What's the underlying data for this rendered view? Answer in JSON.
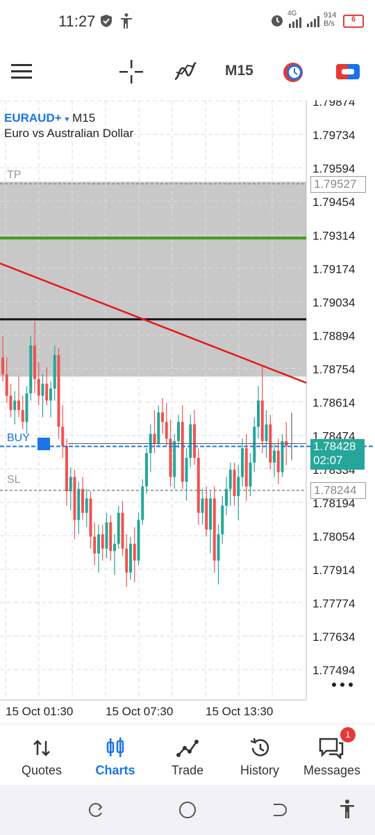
{
  "status_bar": {
    "time": "11:27",
    "network_speed_value": "914",
    "network_speed_unit": "B/s",
    "network_type": "4G",
    "battery_level": "6",
    "icons": [
      "shield-icon",
      "accessibility-icon",
      "alarm-icon",
      "signal-icon",
      "battery-icon"
    ]
  },
  "toolbar": {
    "menu_icon": "hamburger-menu-icon",
    "crosshair_icon": "crosshair-icon",
    "indicators_icon": "indicators-icon",
    "timeframe": "M15",
    "clock_icon": "clock-icon",
    "trade_icon": "trade-toggle-icon"
  },
  "chart": {
    "symbol": "EURAUD+",
    "dropdown_arrow": "▾",
    "timeframe": "M15",
    "description": "Euro vs Australian Dollar",
    "tp_label": "TP",
    "sl_label": "SL",
    "buy_label": "BUY",
    "current_price": "1.78428",
    "countdown": "02:07",
    "tp_price": "1.79527",
    "sl_price": "1.78244",
    "more_icon": "more-dots-icon",
    "colors": {
      "bull": "#26a69a",
      "bear": "#ef5350",
      "tp_zone": "#c8c8c8",
      "green_line": "#3f9d1f",
      "red_trendline": "#e21a1a",
      "buy_line": "#1a73e8"
    }
  },
  "chart_data": {
    "type": "candlestick",
    "symbol": "EURAUD+",
    "timeframe": "M15",
    "y_ticks": [
      "1.79874",
      "1.79734",
      "1.79594",
      "1.79454",
      "1.79314",
      "1.79174",
      "1.79034",
      "1.78894",
      "1.78754",
      "1.78614",
      "1.78474",
      "1.78334",
      "1.78194",
      "1.78054",
      "1.77914",
      "1.77774",
      "1.77634",
      "1.77494"
    ],
    "x_ticks": [
      "15 Oct 01:30",
      "15 Oct 07:30",
      "15 Oct 13:30"
    ],
    "ylim": [
      1.7742,
      1.799
    ],
    "levels": {
      "take_profit": 1.79527,
      "stop_loss": 1.78244,
      "bid": 1.78428,
      "green_line": 1.793,
      "black_line": 1.7896,
      "trendline": [
        [
          1.79194,
          1.78694
        ]
      ]
    },
    "candles": [
      [
        1.788,
        1.7889,
        1.787,
        1.7873
      ],
      [
        1.7873,
        1.788,
        1.7861,
        1.7864
      ],
      [
        1.7864,
        1.7869,
        1.7855,
        1.7858
      ],
      [
        1.7858,
        1.7866,
        1.7852,
        1.7862
      ],
      [
        1.7862,
        1.7872,
        1.7855,
        1.7858
      ],
      [
        1.7858,
        1.7864,
        1.785,
        1.7853
      ],
      [
        1.7853,
        1.7868,
        1.7848,
        1.7865
      ],
      [
        1.7865,
        1.7889,
        1.7862,
        1.7885
      ],
      [
        1.7885,
        1.7895,
        1.7865,
        1.7871
      ],
      [
        1.7871,
        1.7878,
        1.786,
        1.7864
      ],
      [
        1.7864,
        1.7873,
        1.7855,
        1.7869
      ],
      [
        1.7869,
        1.7876,
        1.786,
        1.7862
      ],
      [
        1.7862,
        1.787,
        1.7855,
        1.7867
      ],
      [
        1.7867,
        1.7885,
        1.7862,
        1.7881
      ],
      [
        1.7881,
        1.7884,
        1.7846,
        1.7851
      ],
      [
        1.7851,
        1.786,
        1.7838,
        1.7843
      ],
      [
        1.7843,
        1.7846,
        1.7818,
        1.7824
      ],
      [
        1.7824,
        1.7834,
        1.7816,
        1.783
      ],
      [
        1.783,
        1.7833,
        1.7804,
        1.7812
      ],
      [
        1.7812,
        1.7828,
        1.7806,
        1.7825
      ],
      [
        1.7825,
        1.783,
        1.7812,
        1.7815
      ],
      [
        1.7815,
        1.7825,
        1.7809,
        1.7821
      ],
      [
        1.7821,
        1.7824,
        1.78,
        1.7805
      ],
      [
        1.7805,
        1.7811,
        1.7793,
        1.7798
      ],
      [
        1.7798,
        1.781,
        1.779,
        1.7806
      ],
      [
        1.7806,
        1.781,
        1.7795,
        1.78
      ],
      [
        1.78,
        1.7815,
        1.7796,
        1.7811
      ],
      [
        1.7811,
        1.7814,
        1.7795,
        1.7799
      ],
      [
        1.7799,
        1.7806,
        1.7789,
        1.7802
      ],
      [
        1.7802,
        1.7818,
        1.78,
        1.7815
      ],
      [
        1.7815,
        1.782,
        1.7797,
        1.78
      ],
      [
        1.78,
        1.7806,
        1.7784,
        1.779
      ],
      [
        1.779,
        1.7805,
        1.7787,
        1.7802
      ],
      [
        1.7802,
        1.7809,
        1.7786,
        1.7795
      ],
      [
        1.7795,
        1.7815,
        1.7793,
        1.7812
      ],
      [
        1.7812,
        1.7829,
        1.781,
        1.7826
      ],
      [
        1.7826,
        1.7842,
        1.7823,
        1.784
      ],
      [
        1.784,
        1.7852,
        1.7832,
        1.7848
      ],
      [
        1.7848,
        1.7858,
        1.784,
        1.7844
      ],
      [
        1.7844,
        1.786,
        1.7843,
        1.7857
      ],
      [
        1.7857,
        1.7863,
        1.7848,
        1.7853
      ],
      [
        1.7853,
        1.7861,
        1.7843,
        1.7846
      ],
      [
        1.7846,
        1.7854,
        1.7826,
        1.783
      ],
      [
        1.783,
        1.7848,
        1.7825,
        1.7845
      ],
      [
        1.7845,
        1.7856,
        1.7842,
        1.7853
      ],
      [
        1.7853,
        1.786,
        1.7825,
        1.7828
      ],
      [
        1.7828,
        1.7842,
        1.782,
        1.7838
      ],
      [
        1.7838,
        1.7856,
        1.7834,
        1.7852
      ],
      [
        1.7852,
        1.7858,
        1.7835,
        1.7838
      ],
      [
        1.7838,
        1.7842,
        1.781,
        1.7815
      ],
      [
        1.7815,
        1.7825,
        1.781,
        1.7821
      ],
      [
        1.7821,
        1.7826,
        1.7805,
        1.7808
      ],
      [
        1.7808,
        1.7824,
        1.7798,
        1.7821
      ],
      [
        1.7821,
        1.7826,
        1.779,
        1.7795
      ],
      [
        1.7795,
        1.781,
        1.7785,
        1.7806
      ],
      [
        1.7806,
        1.7822,
        1.7802,
        1.7818
      ],
      [
        1.7818,
        1.783,
        1.7814,
        1.7825
      ],
      [
        1.7825,
        1.7836,
        1.7818,
        1.7833
      ],
      [
        1.7833,
        1.7836,
        1.7818,
        1.7822
      ],
      [
        1.7822,
        1.7835,
        1.7812,
        1.783
      ],
      [
        1.783,
        1.7846,
        1.7826,
        1.7842
      ],
      [
        1.7842,
        1.7848,
        1.782,
        1.7826
      ],
      [
        1.7826,
        1.784,
        1.7822,
        1.7836
      ],
      [
        1.7836,
        1.7855,
        1.7832,
        1.7851
      ],
      [
        1.7851,
        1.7868,
        1.7846,
        1.7862
      ],
      [
        1.7862,
        1.7877,
        1.784,
        1.7845
      ],
      [
        1.7845,
        1.7858,
        1.7838,
        1.7852
      ],
      [
        1.7852,
        1.7856,
        1.7833,
        1.7836
      ],
      [
        1.7836,
        1.7844,
        1.783,
        1.7841
      ],
      [
        1.7841,
        1.7846,
        1.7827,
        1.7832
      ],
      [
        1.7832,
        1.7848,
        1.783,
        1.7845
      ],
      [
        1.7845,
        1.7853,
        1.7835,
        1.7843
      ]
    ]
  },
  "bottom_nav": {
    "items": [
      {
        "label": "Quotes",
        "icon": "quotes-icon"
      },
      {
        "label": "Charts",
        "icon": "charts-icon"
      },
      {
        "label": "Trade",
        "icon": "trade-icon"
      },
      {
        "label": "History",
        "icon": "history-icon"
      },
      {
        "label": "Messages",
        "icon": "messages-icon",
        "badge": "1"
      }
    ],
    "active": "Charts"
  },
  "system_nav": {
    "icons": [
      "recents-icon",
      "home-icon",
      "back-icon",
      "accessibility-icon"
    ]
  }
}
